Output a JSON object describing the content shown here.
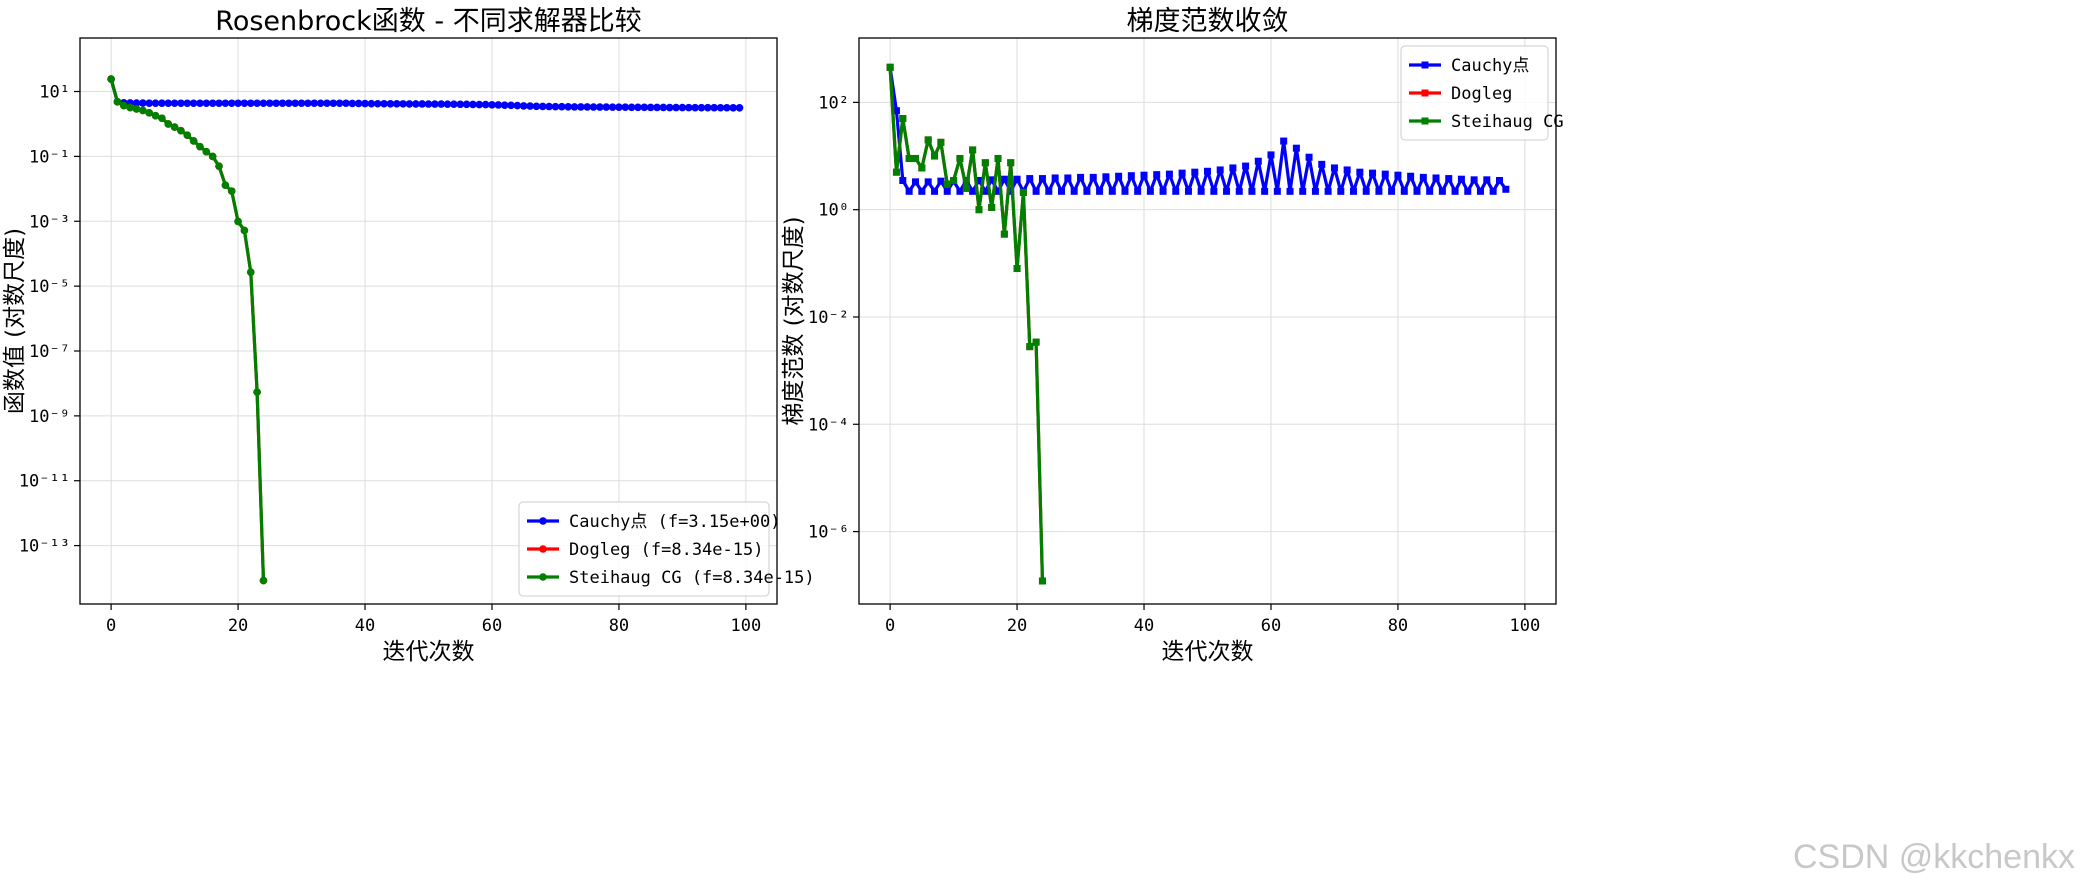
{
  "watermark": "CSDN @kkchenkx",
  "chart_data": [
    {
      "type": "line",
      "title": "Rosenbrock函数 - 不同求解器比较",
      "xlabel": "迭代次数",
      "ylabel": "函数值 (对数尺度)",
      "yscale": "log",
      "xlim": [
        -4.9,
        104.9
      ],
      "ylim_log10": [
        -14.8,
        2.65
      ],
      "xticks": [
        0,
        20,
        40,
        60,
        80,
        100
      ],
      "yticks": [
        {
          "exp": 1,
          "label": "10¹"
        },
        {
          "exp": -1,
          "label": "10⁻¹"
        },
        {
          "exp": -3,
          "label": "10⁻³"
        },
        {
          "exp": -5,
          "label": "10⁻⁵"
        },
        {
          "exp": -7,
          "label": "10⁻⁷"
        },
        {
          "exp": -9,
          "label": "10⁻⁹"
        },
        {
          "exp": -11,
          "label": "10⁻¹¹"
        },
        {
          "exp": -13,
          "label": "10⁻¹³"
        }
      ],
      "grid": true,
      "legend_position": "lower-right",
      "marker": "circle",
      "series": [
        {
          "name": "Cauchy点 (f=3.15e+00)",
          "color": "#0000ff",
          "x_start": 0,
          "y": [
            24.2,
            4.8,
            4.5,
            4.45,
            4.42,
            4.4,
            4.38,
            4.37,
            4.36,
            4.35,
            4.35,
            4.35,
            4.35,
            4.35,
            4.35,
            4.35,
            4.35,
            4.35,
            4.35,
            4.35,
            4.35,
            4.35,
            4.35,
            4.35,
            4.35,
            4.35,
            4.35,
            4.35,
            4.35,
            4.35,
            4.35,
            4.35,
            4.35,
            4.35,
            4.35,
            4.35,
            4.35,
            4.35,
            4.3,
            4.28,
            4.25,
            4.22,
            4.2,
            4.2,
            4.18,
            4.17,
            4.16,
            4.15,
            4.14,
            4.13,
            4.12,
            4.1,
            4.1,
            4.08,
            4.07,
            4.05,
            4.03,
            4.0,
            3.97,
            3.95,
            3.9,
            3.85,
            3.8,
            3.75,
            3.7,
            3.6,
            3.55,
            3.5,
            3.48,
            3.45,
            3.42,
            3.4,
            3.38,
            3.36,
            3.35,
            3.34,
            3.33,
            3.32,
            3.31,
            3.3,
            3.29,
            3.28,
            3.27,
            3.26,
            3.25,
            3.24,
            3.23,
            3.22,
            3.21,
            3.2,
            3.2,
            3.19,
            3.18,
            3.18,
            3.17,
            3.17,
            3.16,
            3.16,
            3.15,
            3.15
          ]
        },
        {
          "name": "Dogleg (f=8.34e-15)",
          "color": "#ff0000",
          "x_start": 0,
          "y": [
            24.2,
            4.8,
            3.7,
            3.2,
            2.9,
            2.6,
            2.2,
            1.8,
            1.5,
            1.0,
            0.8,
            0.62,
            0.45,
            0.3,
            0.2,
            0.14,
            0.1,
            0.05,
            0.013,
            0.0085,
            0.00099,
            0.00052,
            2.7e-05,
            5.4e-09,
            8.34e-15
          ]
        },
        {
          "name": "Steihaug CG (f=8.34e-15)",
          "color": "#008000",
          "x_start": 0,
          "y": [
            24.2,
            4.8,
            3.7,
            3.2,
            2.9,
            2.6,
            2.2,
            1.8,
            1.5,
            1.0,
            0.8,
            0.62,
            0.45,
            0.3,
            0.2,
            0.14,
            0.1,
            0.05,
            0.013,
            0.0085,
            0.00099,
            0.00052,
            2.7e-05,
            5.4e-09,
            8.34e-15
          ]
        }
      ]
    },
    {
      "type": "line",
      "title": "梯度范数收敛",
      "xlabel": "迭代次数",
      "ylabel": "梯度范数 (对数尺度)",
      "yscale": "log",
      "xlim": [
        -4.9,
        104.9
      ],
      "ylim_log10": [
        -7.35,
        3.2
      ],
      "xticks": [
        0,
        20,
        40,
        60,
        80,
        100
      ],
      "yticks": [
        {
          "exp": 2,
          "label": "10²"
        },
        {
          "exp": 0,
          "label": "10⁰"
        },
        {
          "exp": -2,
          "label": "10⁻²"
        },
        {
          "exp": -4,
          "label": "10⁻⁴"
        },
        {
          "exp": -6,
          "label": "10⁻⁶"
        }
      ],
      "grid": true,
      "legend_position": "upper-right",
      "marker": "square",
      "series": [
        {
          "name": "Cauchy点",
          "color": "#0000ff",
          "x_start": 0,
          "y": [
            450,
            70,
            3.5,
            2.2,
            3.3,
            2.2,
            3.3,
            2.2,
            3.4,
            2.2,
            3.4,
            2.2,
            3.5,
            2.2,
            3.5,
            2.2,
            3.6,
            2.2,
            3.7,
            2.2,
            3.7,
            2.2,
            3.8,
            2.2,
            3.8,
            2.2,
            3.9,
            2.2,
            3.9,
            2.2,
            4.0,
            2.2,
            4.0,
            2.2,
            4.1,
            2.2,
            4.2,
            2.2,
            4.3,
            2.2,
            4.4,
            2.2,
            4.5,
            2.2,
            4.6,
            2.2,
            4.8,
            2.2,
            5.0,
            2.2,
            5.2,
            2.2,
            5.5,
            2.2,
            6.0,
            2.2,
            6.5,
            2.2,
            8.0,
            2.2,
            10.5,
            2.2,
            19.0,
            2.2,
            14.0,
            2.2,
            9.5,
            2.2,
            7.0,
            2.2,
            6.0,
            2.2,
            5.5,
            2.2,
            5.0,
            2.2,
            4.8,
            2.2,
            4.6,
            2.2,
            4.4,
            2.2,
            4.2,
            2.2,
            4.0,
            2.2,
            3.9,
            2.2,
            3.8,
            2.2,
            3.7,
            2.2,
            3.6,
            2.2,
            3.6,
            2.2,
            3.5,
            2.4
          ]
        },
        {
          "name": "Dogleg",
          "color": "#ff0000",
          "x_start": 0,
          "y": [
            450,
            5,
            50,
            9,
            9,
            6,
            20,
            10,
            18,
            3,
            3.5,
            9,
            2.5,
            13,
            1,
            7.5,
            1.1,
            9,
            0.35,
            7.5,
            0.08,
            2.1,
            0.0028,
            0.0034,
            1.2e-07
          ]
        },
        {
          "name": "Steihaug CG",
          "color": "#008000",
          "x_start": 0,
          "y": [
            450,
            5,
            50,
            9,
            9,
            6,
            20,
            10,
            18,
            3,
            3.5,
            9,
            2.5,
            13,
            1,
            7.5,
            1.1,
            9,
            0.35,
            7.5,
            0.08,
            2.1,
            0.0028,
            0.0034,
            1.2e-07
          ]
        }
      ]
    }
  ]
}
